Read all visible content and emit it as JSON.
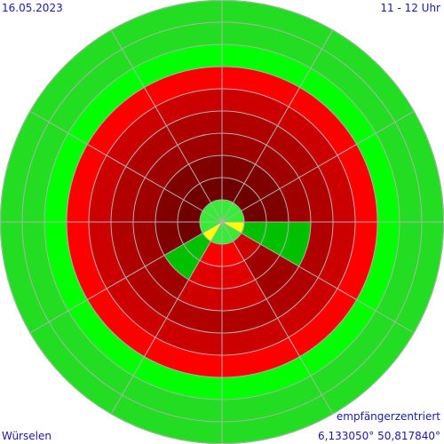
{
  "header": {
    "date": "16.05.2023",
    "time": "11 - 12 Uhr"
  },
  "footer": {
    "place": "Würselen",
    "mode": "empfängerzentriert",
    "coords": "6,133050° 50,817840°"
  },
  "polar": {
    "sectors": 12,
    "grid_color": "#b0b0b0",
    "rings": [
      [
        "#33ee33",
        "#33ee33",
        "#33ee33",
        "#ffff00",
        "#33ee33",
        "#33ee33",
        "#33ee33",
        "#ffff00",
        "#33ee33",
        "#33ee33",
        "#33ee33",
        "#33ee33"
      ],
      [
        "#700000",
        "#700000",
        "#700000",
        "#00c000",
        "#cc0000",
        "#ff0000",
        "#ff0000",
        "#00c000",
        "#700000",
        "#700000",
        "#700000",
        "#700000"
      ],
      [
        "#800000",
        "#800000",
        "#800000",
        "#00c000",
        "#a00000",
        "#e00000",
        "#e00000",
        "#00c000",
        "#800000",
        "#800000",
        "#800000",
        "#800000"
      ],
      [
        "#a00000",
        "#a00000",
        "#a00000",
        "#00c000",
        "#a00000",
        "#d00000",
        "#d00000",
        "#a00000",
        "#a00000",
        "#a00000",
        "#a00000",
        "#a00000"
      ],
      [
        "#b00000",
        "#b00000",
        "#b00000",
        "#b00000",
        "#b00000",
        "#b00000",
        "#b00000",
        "#b00000",
        "#b00000",
        "#b00000",
        "#b00000",
        "#b00000"
      ],
      [
        "#cc0000",
        "#cc0000",
        "#cc0000",
        "#cc0000",
        "#cc0000",
        "#cc0000",
        "#cc0000",
        "#cc0000",
        "#cc0000",
        "#cc0000",
        "#cc0000",
        "#cc0000"
      ],
      [
        "#ff0000",
        "#ff0000",
        "#ff0000",
        "#ff0000",
        "#ff0000",
        "#ff0000",
        "#ff0000",
        "#ff0000",
        "#ff0000",
        "#ff0000",
        "#ff0000",
        "#ff0000"
      ],
      [
        "#00ff00",
        "#00ff00",
        "#00ff00",
        "#00ff00",
        "#00ff00",
        "#00ff00",
        "#00ff00",
        "#00ff00",
        "#00ff00",
        "#00ff00",
        "#00ff00",
        "#00ff00"
      ],
      [
        "#22dd22",
        "#22dd22",
        "#22dd22",
        "#22dd22",
        "#22dd22",
        "#22dd22",
        "#22dd22",
        "#22dd22",
        "#22dd22",
        "#22dd22",
        "#22dd22",
        "#22dd22"
      ],
      [
        "#22dd22",
        "#22dd22",
        "#22dd22",
        "#22dd22",
        "#22dd22",
        "#22dd22",
        "#22dd22",
        "#22dd22",
        "#22dd22",
        "#22dd22",
        "#22dd22",
        "#22dd22"
      ]
    ]
  }
}
